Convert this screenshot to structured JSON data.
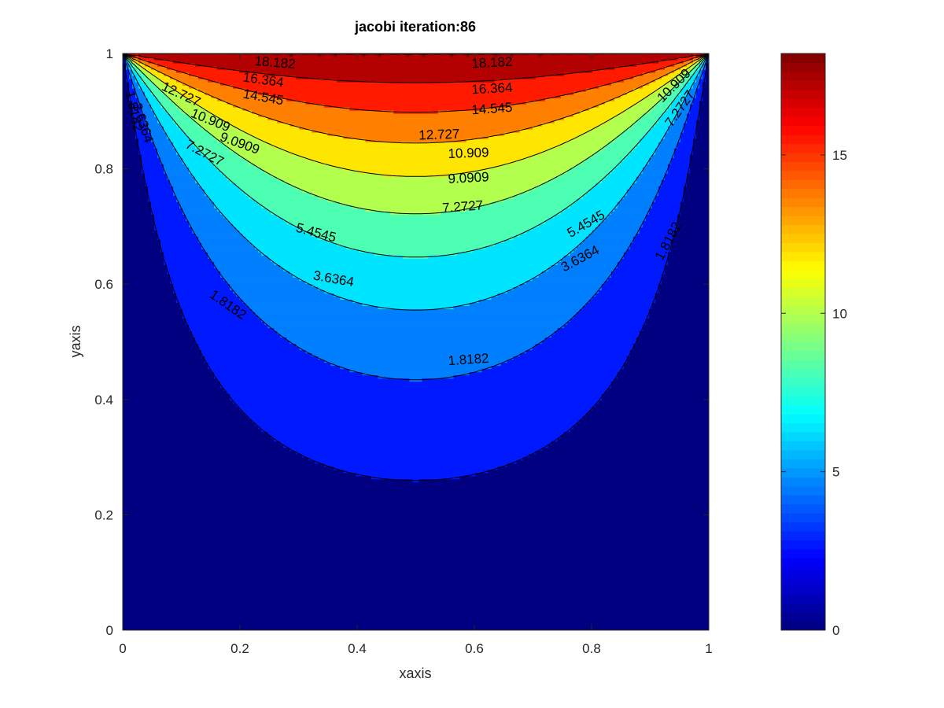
{
  "chart_data": {
    "type": "contour",
    "title": "jacobi iteration:86",
    "xlabel": "xaxis",
    "ylabel": "yaxis",
    "xlim": [
      0,
      1
    ],
    "ylim": [
      0,
      1
    ],
    "xticks": [
      "0",
      "0.2",
      "0.4",
      "0.6",
      "0.8",
      "1"
    ],
    "yticks": [
      "0",
      "0.2",
      "0.4",
      "0.6",
      "0.8",
      "1"
    ],
    "colormap": "jet",
    "clim": [
      0,
      18.2
    ],
    "colorbar_ticks": [
      "0",
      "5",
      "10",
      "15"
    ],
    "levels": [
      1.8182,
      3.6364,
      5.4545,
      7.2727,
      9.0909,
      10.909,
      12.727,
      14.545,
      16.364,
      18.182
    ],
    "contour_labels": [
      {
        "text": "18.182",
        "x": 0.26,
        "y": 0.985,
        "rot": 5
      },
      {
        "text": "18.182",
        "x": 0.63,
        "y": 0.985,
        "rot": -3
      },
      {
        "text": "16.364",
        "x": 0.24,
        "y": 0.955,
        "rot": 8
      },
      {
        "text": "16.364",
        "x": 0.63,
        "y": 0.94,
        "rot": -3
      },
      {
        "text": "14.545",
        "x": 0.24,
        "y": 0.925,
        "rot": 10
      },
      {
        "text": "14.545",
        "x": 0.63,
        "y": 0.905,
        "rot": -4
      },
      {
        "text": "12.727",
        "x": 0.1,
        "y": 0.93,
        "rot": 25
      },
      {
        "text": "12.727",
        "x": 0.54,
        "y": 0.86,
        "rot": -2
      },
      {
        "text": "10.909",
        "x": 0.15,
        "y": 0.885,
        "rot": 22
      },
      {
        "text": "10.909",
        "x": 0.59,
        "y": 0.828,
        "rot": -2
      },
      {
        "text": "9.0909",
        "x": 0.2,
        "y": 0.845,
        "rot": 20
      },
      {
        "text": "9.0909",
        "x": 0.59,
        "y": 0.785,
        "rot": -3
      },
      {
        "text": "7.2727",
        "x": 0.14,
        "y": 0.828,
        "rot": 28
      },
      {
        "text": "7.2727",
        "x": 0.58,
        "y": 0.735,
        "rot": -4
      },
      {
        "text": "5.4545",
        "x": 0.33,
        "y": 0.69,
        "rot": 15
      },
      {
        "text": "5.4545",
        "x": 0.79,
        "y": 0.705,
        "rot": -30
      },
      {
        "text": "3.6364",
        "x": 0.36,
        "y": 0.61,
        "rot": 10
      },
      {
        "text": "3.6364",
        "x": 0.78,
        "y": 0.645,
        "rot": -28
      },
      {
        "text": "1.8182",
        "x": 0.18,
        "y": 0.565,
        "rot": 35
      },
      {
        "text": "1.8182",
        "x": 0.59,
        "y": 0.47,
        "rot": -4
      },
      {
        "text": "1.8182",
        "x": 0.93,
        "y": 0.675,
        "rot": -62
      },
      {
        "text": "1.8182",
        "x": 0.02,
        "y": 0.9,
        "rot": 78
      },
      {
        "text": "3.6364",
        "x": 0.035,
        "y": 0.88,
        "rot": 72
      },
      {
        "text": "10.909",
        "x": 0.94,
        "y": 0.945,
        "rot": -45
      },
      {
        "text": "7.2727",
        "x": 0.95,
        "y": 0.905,
        "rot": -55
      }
    ]
  }
}
